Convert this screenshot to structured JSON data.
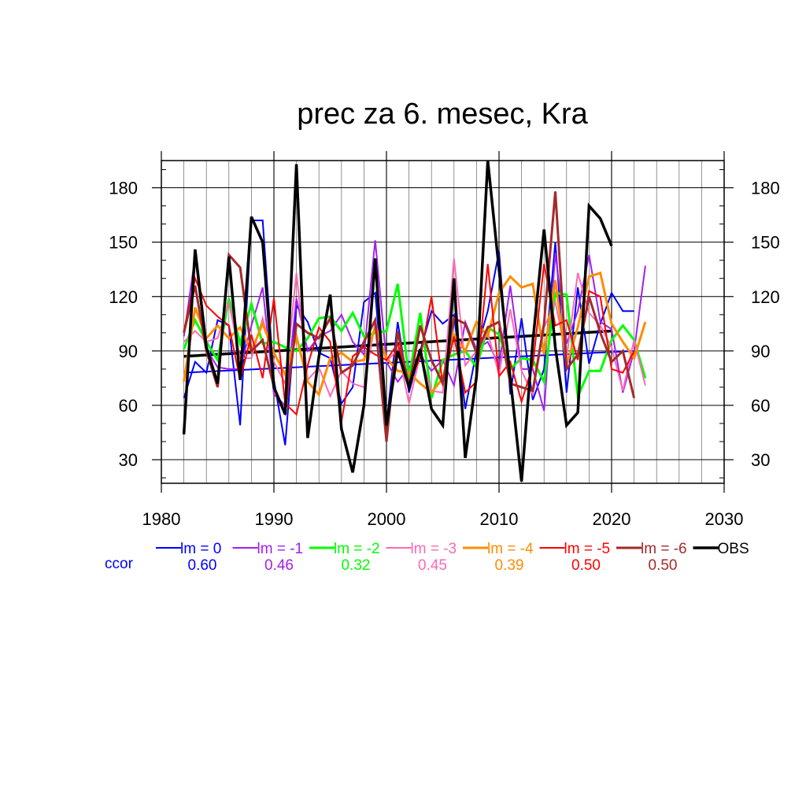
{
  "chart_data": {
    "type": "line",
    "title": "prec za 6. mesec, Kra",
    "xlim": [
      1980,
      2030
    ],
    "ylim": [
      17,
      195
    ],
    "x_ticks": [
      1980,
      1990,
      2000,
      2010,
      2020,
      2030
    ],
    "y_ticks": [
      30,
      60,
      90,
      120,
      150,
      180
    ],
    "grid": true,
    "legend_placement": "bottom",
    "ccor_label": "ccor",
    "ccor_color": "#0000ff",
    "series": [
      {
        "name": "lm = 0",
        "color": "#0000ff",
        "width": 2,
        "ccor": "0.60",
        "start": 1982,
        "values": [
          64,
          84,
          78,
          107,
          104,
          49,
          162,
          162,
          74,
          38,
          115,
          106,
          89,
          86,
          61,
          70,
          117,
          122,
          50,
          106,
          67,
          90,
          112,
          105,
          110,
          58,
          90,
          112,
          145,
          66,
          108,
          63,
          80,
          150,
          67,
          125,
          83,
          105,
          122,
          112,
          112
        ],
        "trend": [
          78,
          90
        ]
      },
      {
        "name": "lm = -1",
        "color": "#a020f0",
        "width": 2,
        "ccor": "0.46",
        "start": 1982,
        "values": [
          98,
          142,
          91,
          81,
          80,
          80,
          104,
          125,
          66,
          60,
          119,
          90,
          98,
          101,
          110,
          95,
          88,
          151,
          84,
          73,
          81,
          88,
          79,
          85,
          71,
          106,
          91,
          95,
          82,
          126,
          80,
          80,
          57,
          144,
          94,
          112,
          143,
          106,
          102,
          67,
          90,
          137
        ],
        "trend": null
      },
      {
        "name": "lm = -2",
        "color": "#00ff00",
        "width": 3,
        "ccor": "0.32",
        "start": 1982,
        "values": [
          91,
          107,
          95,
          85,
          119,
          94,
          116,
          94,
          95,
          92,
          90,
          97,
          108,
          109,
          101,
          111,
          98,
          100,
          101,
          127,
          75,
          111,
          64,
          85,
          88,
          90,
          81,
          103,
          99,
          80,
          86,
          85,
          73,
          122,
          121,
          65,
          79,
          79,
          96,
          104,
          96,
          75
        ],
        "trend": null
      },
      {
        "name": "lm = -3",
        "color": "#ff69b4",
        "width": 2,
        "ccor": "0.45",
        "start": 1982,
        "values": [
          95,
          101,
          95,
          97,
          117,
          86,
          86,
          108,
          84,
          72,
          133,
          74,
          81,
          65,
          79,
          72,
          70,
          106,
          84,
          91,
          61,
          88,
          68,
          67,
          141,
          82,
          90,
          100,
          77,
          113,
          79,
          66,
          103,
          117,
          86,
          133,
          111,
          104,
          92,
          68,
          96,
          71
        ],
        "trend": null
      },
      {
        "name": "lm = -4",
        "color": "#ff8c00",
        "width": 3,
        "ccor": "0.39",
        "start": 1982,
        "values": [
          73,
          114,
          97,
          104,
          97,
          103,
          90,
          105,
          89,
          77,
          98,
          73,
          66,
          86,
          89,
          84,
          85,
          103,
          86,
          79,
          78,
          72,
          67,
          75,
          99,
          90,
          106,
          98,
          122,
          131,
          125,
          127,
          88,
          129,
          82,
          103,
          131,
          133,
          105,
          95,
          86,
          106
        ],
        "trend": null
      },
      {
        "name": "lm = -5",
        "color": "#ff0000",
        "width": 2,
        "ccor": "0.50",
        "start": 1982,
        "values": [
          101,
          130,
          115,
          109,
          104,
          74,
          99,
          75,
          119,
          61,
          55,
          82,
          103,
          95,
          51,
          87,
          92,
          88,
          85,
          94,
          73,
          86,
          120,
          71,
          98,
          67,
          73,
          138,
          76,
          84,
          62,
          82,
          138,
          104,
          107,
          85,
          123,
          120,
          80,
          78,
          90
        ],
        "trend": null
      },
      {
        "name": "lm = -6",
        "color": "#a52a2a",
        "width": 3,
        "ccor": "0.50",
        "start": 1982,
        "values": [
          100,
          126,
          90,
          70,
          143,
          136,
          90,
          96,
          70,
          56,
          105,
          100,
          97,
          108,
          78,
          82,
          95,
          107,
          40,
          101,
          70,
          104,
          85,
          72,
          108,
          105,
          89,
          103,
          106,
          72,
          70,
          68,
          105,
          178,
          80,
          88,
          120,
          100,
          84,
          90,
          64
        ],
        "trend": null
      },
      {
        "name": "OBS",
        "color": "#000000",
        "width": 3.5,
        "ccor": "",
        "start": 1982,
        "values": [
          44,
          146,
          92,
          72,
          142,
          74,
          164,
          150,
          70,
          55,
          193,
          42,
          87,
          121,
          47,
          23,
          60,
          141,
          49,
          90,
          70,
          91,
          58,
          49,
          130,
          31,
          76,
          195,
          135,
          75,
          18,
          95,
          157,
          92,
          49,
          56,
          170,
          163,
          148
        ],
        "trend": [
          87,
          101
        ]
      }
    ]
  }
}
